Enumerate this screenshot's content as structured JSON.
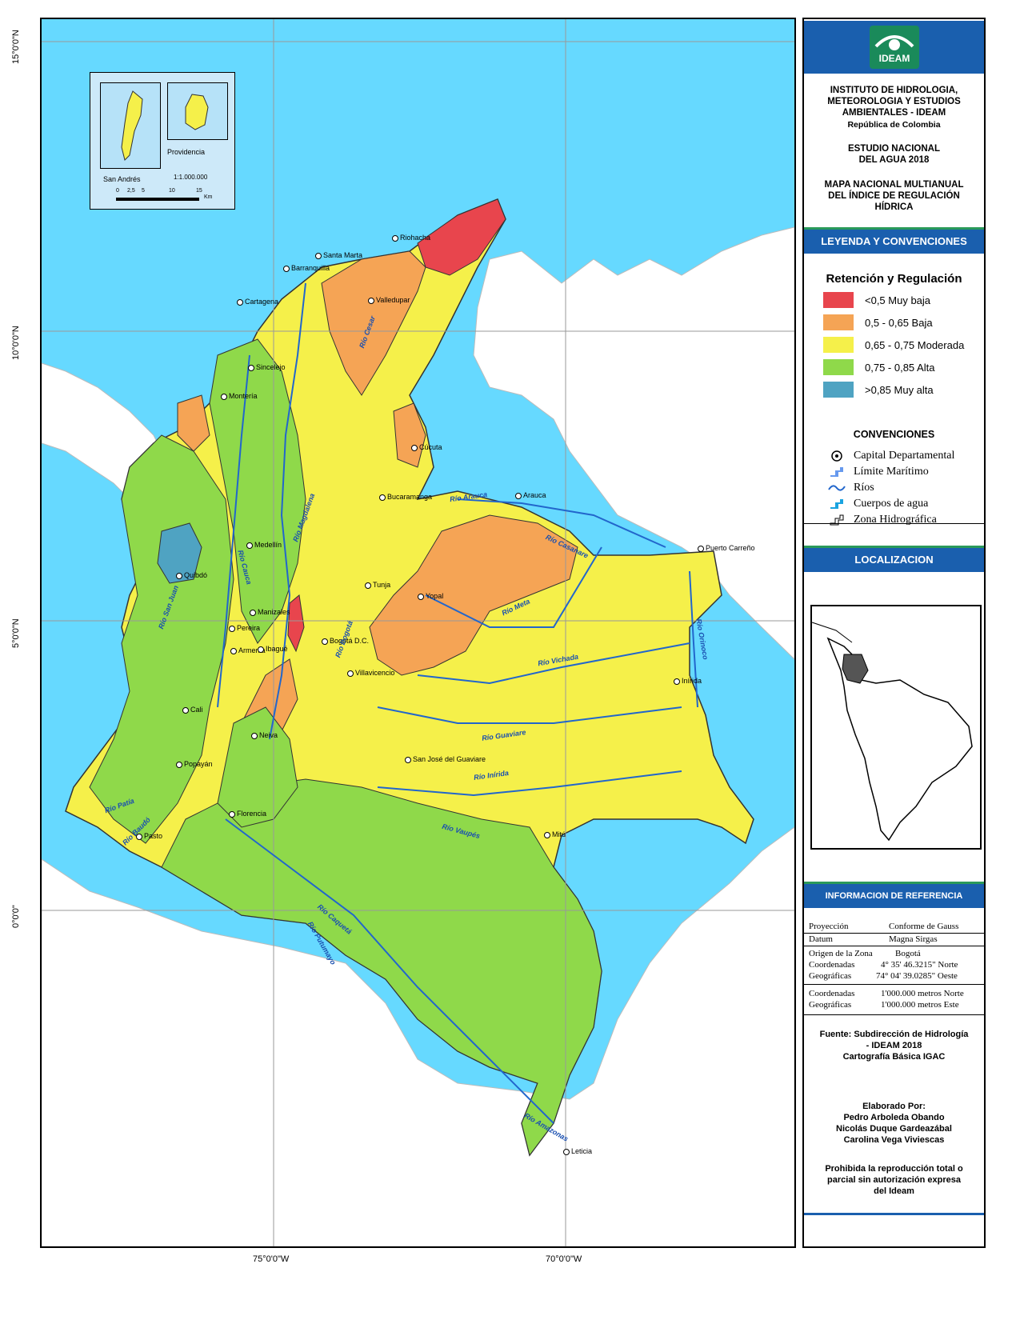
{
  "lat_labels": [
    "15°0'0\"N",
    "10°0'0\"N",
    "5°0'0\"N",
    "0°0'0\""
  ],
  "lon_labels": [
    "75°0'0\"W",
    "70°0'0\"W"
  ],
  "inset": {
    "left_name": "San Andrés",
    "right_name": "Providencia",
    "scale_text": "1:1.000.000",
    "scale_ticks": [
      "0",
      "2,5",
      "5",
      "10",
      "15"
    ],
    "scale_unit": "Km"
  },
  "cities": [
    {
      "name": "Riohacha"
    },
    {
      "name": "Santa Marta"
    },
    {
      "name": "Barranquilla"
    },
    {
      "name": "Valledupar"
    },
    {
      "name": "Cartagena"
    },
    {
      "name": "Sincelejo"
    },
    {
      "name": "Montería"
    },
    {
      "name": "Cúcuta"
    },
    {
      "name": "Bucaramanga"
    },
    {
      "name": "Arauca"
    },
    {
      "name": "Puerto Carreño"
    },
    {
      "name": "Medellín"
    },
    {
      "name": "Quibdó"
    },
    {
      "name": "Tunja"
    },
    {
      "name": "Yopal"
    },
    {
      "name": "Manizales"
    },
    {
      "name": "Pereira"
    },
    {
      "name": "Armenia"
    },
    {
      "name": "Ibagué"
    },
    {
      "name": "Bogotá D.C."
    },
    {
      "name": "Villavicencio"
    },
    {
      "name": "Inírida"
    },
    {
      "name": "Cali"
    },
    {
      "name": "Neiva"
    },
    {
      "name": "Popayán"
    },
    {
      "name": "San José del Guaviare"
    },
    {
      "name": "Florencia"
    },
    {
      "name": "Pasto"
    },
    {
      "name": "Mitú"
    },
    {
      "name": "Leticia"
    }
  ],
  "rivers": [
    {
      "name": "Río Cesar"
    },
    {
      "name": "Río Magdalena"
    },
    {
      "name": "Río Arauca"
    },
    {
      "name": "Río Casanare"
    },
    {
      "name": "Río Meta"
    },
    {
      "name": "Río Cauca"
    },
    {
      "name": "Río San Juan"
    },
    {
      "name": "Río Bogotá"
    },
    {
      "name": "Río Vichada"
    },
    {
      "name": "Río Orinoco"
    },
    {
      "name": "Río Guaviare"
    },
    {
      "name": "Río Inírida"
    },
    {
      "name": "Río Patía"
    },
    {
      "name": "Río Baudó"
    },
    {
      "name": "Río Vaupés"
    },
    {
      "name": "Río Caquetá"
    },
    {
      "name": "Río Putumayo"
    },
    {
      "name": "Río Amazonas"
    }
  ],
  "panel": {
    "logo_text": "IDEAM",
    "inst_lines": [
      "INSTITUTO DE HIDROLOGIA,",
      "METEOROLOGIA Y ESTUDIOS",
      "AMBIENTALES - IDEAM"
    ],
    "country": "República de Colombia",
    "study_lines": [
      "ESTUDIO NACIONAL",
      "DEL AGUA 2018"
    ],
    "map_title_lines": [
      "MAPA NACIONAL MULTIANUAL",
      "DEL ÍNDICE DE REGULACIÓN",
      "HÍDRICA"
    ],
    "legend_bar": "LEYENDA Y CONVENCIONES",
    "legend_title": "Retención y Regulación",
    "legend_items": [
      {
        "label": "<0,5 Muy baja",
        "color": "#e8454d"
      },
      {
        "label": "0,5 - 0,65 Baja",
        "color": "#f5a455"
      },
      {
        "label": "0,65 - 0,75 Moderada",
        "color": "#f5f04a"
      },
      {
        "label": "0,75 - 0,85 Alta",
        "color": "#8fd94a"
      },
      {
        "label": ">0,85 Muy alta",
        "color": "#4fa3c2"
      }
    ],
    "conv_title": "CONVENCIONES",
    "conv_items": [
      {
        "label": "Capital Departamental",
        "icon": "capital-icon"
      },
      {
        "label": "Límite Marítimo",
        "icon": "maritime-limit-icon"
      },
      {
        "label": "Ríos",
        "icon": "river-icon"
      },
      {
        "label": "Cuerpos de agua",
        "icon": "water-body-icon"
      },
      {
        "label": "Zona Hidrográfica",
        "icon": "hydro-zone-icon"
      }
    ],
    "loc_bar": "LOCALIZACION",
    "ref_bar": "INFORMACION DE REFERENCIA",
    "ref": {
      "proj_l": "Proyección",
      "proj_v": "Conforme de Gauss",
      "datum_l": "Datum",
      "datum_v": "Magna Sirgas",
      "origin_l": "Origen de la Zona",
      "origin_v": "Bogotá",
      "coord_l": "Coordenadas",
      "coord_v": "4° 35' 46.3215\" Norte",
      "geo_l": "Geográficas",
      "geo_v": "74° 04' 39.0285\" Oeste",
      "coord2_l": "Coordenadas",
      "coord2_v": "1'000.000 metros Norte",
      "geo2_l": "Geográficas",
      "geo2_v": "1'000.000 metros Este"
    },
    "source_lines": [
      "Fuente: Subdirección de Hidrología",
      "- IDEAM 2018",
      "Cartografía Básica IGAC"
    ],
    "authors_lines": [
      "Elaborado Por:",
      "Pedro Arboleda Obando",
      "Nicolás Duque Gardeazábal",
      "Carolina Vega Viviescas"
    ],
    "prohib_lines": [
      "Prohibida la reproducción total o",
      "parcial sin autorización expresa",
      "del Ideam"
    ]
  }
}
